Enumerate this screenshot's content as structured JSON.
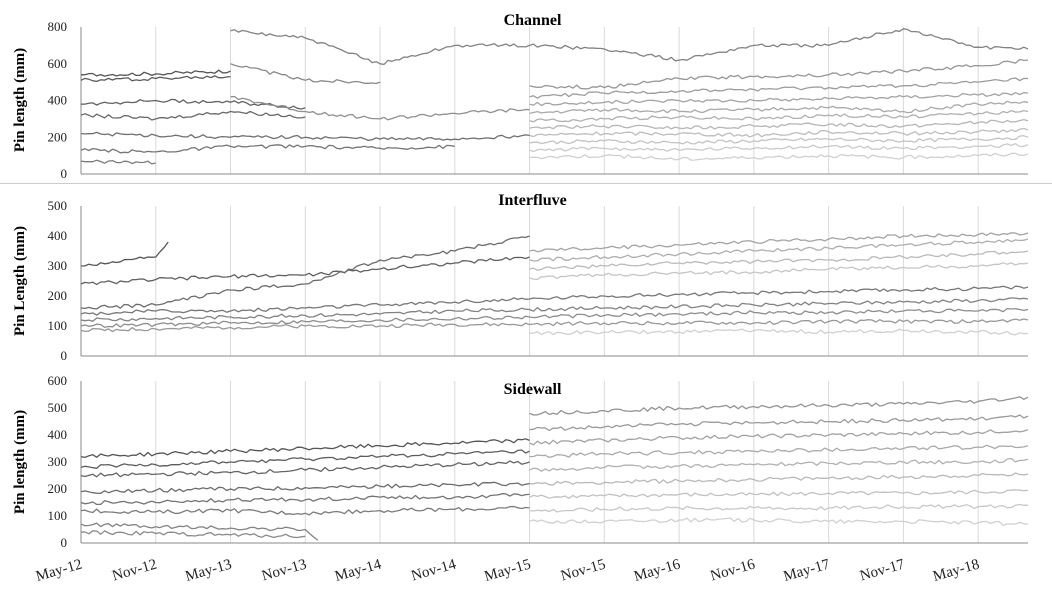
{
  "chart_data": [
    {
      "type": "line",
      "title": "Channel",
      "ylabel": "Pin length (mm)",
      "ylim": [
        0,
        800
      ],
      "yticks": [
        "0",
        "200",
        "400",
        "600",
        "800"
      ],
      "xlim": [
        "May-12",
        "Sep-18"
      ],
      "grid": "vertical",
      "series_color_range": [
        "#555555",
        "#d0d0d0"
      ],
      "series": [
        {
          "x": [
            "May-12",
            "Nov-12",
            "May-13"
          ],
          "values": [
            540,
            545,
            560
          ]
        },
        {
          "x": [
            "May-12",
            "Nov-12",
            "May-13"
          ],
          "values": [
            510,
            520,
            530
          ]
        },
        {
          "x": [
            "May-12",
            "Nov-12",
            "May-13",
            "Nov-13"
          ],
          "values": [
            380,
            400,
            390,
            360
          ]
        },
        {
          "x": [
            "May-12",
            "Nov-12",
            "May-13",
            "Nov-13"
          ],
          "values": [
            320,
            300,
            340,
            310
          ]
        },
        {
          "x": [
            "May-12",
            "Nov-12",
            "May-13",
            "Nov-13",
            "May-14",
            "Nov-14",
            "May-15"
          ],
          "values": [
            220,
            210,
            200,
            200,
            190,
            190,
            210
          ]
        },
        {
          "x": [
            "May-12",
            "Nov-12",
            "May-13",
            "Nov-13",
            "May-14",
            "Nov-14"
          ],
          "values": [
            130,
            120,
            150,
            150,
            140,
            150
          ]
        },
        {
          "x": [
            "May-12",
            "Nov-12"
          ],
          "values": [
            70,
            60
          ]
        },
        {
          "x": [
            "May-13",
            "Nov-13",
            "May-14",
            "Nov-14",
            "May-15",
            "Nov-15",
            "May-16",
            "Nov-16",
            "May-17",
            "Nov-17",
            "May-18",
            "Sep-18"
          ],
          "values": [
            780,
            740,
            600,
            700,
            700,
            680,
            620,
            700,
            700,
            790,
            690,
            680
          ]
        },
        {
          "x": [
            "May-13",
            "Nov-13",
            "May-14"
          ],
          "values": [
            600,
            510,
            500
          ]
        },
        {
          "x": [
            "May-13",
            "Nov-13",
            "May-14",
            "Nov-14",
            "May-15"
          ],
          "values": [
            420,
            340,
            300,
            330,
            350
          ]
        },
        {
          "x": [
            "May-15",
            "Nov-15",
            "May-16",
            "Nov-16",
            "May-17",
            "Nov-17",
            "May-18",
            "Sep-18"
          ],
          "values": [
            480,
            470,
            520,
            530,
            540,
            560,
            590,
            620
          ]
        },
        {
          "x": [
            "May-15",
            "Nov-15",
            "May-16",
            "Nov-16",
            "May-17",
            "Nov-17",
            "May-18",
            "Sep-18"
          ],
          "values": [
            420,
            440,
            450,
            460,
            470,
            480,
            500,
            520
          ]
        },
        {
          "x": [
            "May-15",
            "Nov-15",
            "May-16",
            "Nov-16",
            "May-17",
            "Nov-17",
            "May-18",
            "Sep-18"
          ],
          "values": [
            380,
            390,
            400,
            400,
            410,
            420,
            430,
            440
          ]
        },
        {
          "x": [
            "May-15",
            "Nov-15",
            "May-16",
            "Nov-16",
            "May-17",
            "Nov-17",
            "May-18",
            "Sep-18"
          ],
          "values": [
            330,
            350,
            340,
            350,
            360,
            340,
            380,
            390
          ]
        },
        {
          "x": [
            "May-15",
            "Nov-15",
            "May-16",
            "Nov-16",
            "May-17",
            "Nov-17",
            "May-18",
            "Sep-18"
          ],
          "values": [
            290,
            300,
            310,
            300,
            320,
            310,
            330,
            340
          ]
        },
        {
          "x": [
            "May-15",
            "Nov-15",
            "May-16",
            "Nov-16",
            "May-17",
            "Nov-17",
            "May-18",
            "Sep-18"
          ],
          "values": [
            250,
            260,
            250,
            260,
            270,
            260,
            280,
            290
          ]
        },
        {
          "x": [
            "May-15",
            "Nov-15",
            "May-16",
            "Nov-16",
            "May-17",
            "Nov-17",
            "May-18",
            "Sep-18"
          ],
          "values": [
            210,
            220,
            220,
            210,
            230,
            220,
            230,
            240
          ]
        },
        {
          "x": [
            "May-15",
            "Nov-15",
            "May-16",
            "Nov-16",
            "May-17",
            "Nov-17",
            "May-18",
            "Sep-18"
          ],
          "values": [
            170,
            180,
            170,
            180,
            190,
            180,
            190,
            200
          ]
        },
        {
          "x": [
            "May-15",
            "Nov-15",
            "May-16",
            "Nov-16",
            "May-17",
            "Nov-17",
            "May-18",
            "Sep-18"
          ],
          "values": [
            130,
            140,
            130,
            140,
            150,
            140,
            150,
            160
          ]
        },
        {
          "x": [
            "May-15",
            "Nov-15",
            "May-16",
            "Nov-16",
            "May-17",
            "Nov-17",
            "May-18",
            "Sep-18"
          ],
          "values": [
            90,
            100,
            80,
            90,
            100,
            90,
            100,
            110
          ]
        }
      ]
    },
    {
      "type": "line",
      "title": "Interfluve",
      "ylabel": "Pin Length (mm)",
      "ylim": [
        0,
        500
      ],
      "yticks": [
        "0",
        "100",
        "200",
        "300",
        "400",
        "500"
      ],
      "xlim": [
        "May-12",
        "Sep-18"
      ],
      "grid": "vertical",
      "series_color_range": [
        "#555555",
        "#d0d0d0"
      ],
      "series": [
        {
          "x": [
            "May-12",
            "Nov-12",
            "Dec-12"
          ],
          "values": [
            300,
            330,
            380
          ]
        },
        {
          "x": [
            "May-12",
            "Nov-12",
            "May-13",
            "Nov-13",
            "May-14",
            "Nov-14",
            "May-15"
          ],
          "values": [
            240,
            255,
            265,
            270,
            290,
            310,
            330
          ]
        },
        {
          "x": [
            "May-12",
            "Nov-12",
            "May-13",
            "Nov-13",
            "May-14",
            "Nov-14",
            "May-15"
          ],
          "values": [
            160,
            170,
            220,
            240,
            320,
            350,
            400
          ]
        },
        {
          "x": [
            "May-12",
            "Nov-12",
            "May-13",
            "Nov-13",
            "May-14",
            "Nov-14",
            "May-15",
            "Nov-15",
            "May-16",
            "Nov-16",
            "May-17",
            "Nov-17",
            "May-18",
            "Sep-18"
          ],
          "values": [
            140,
            150,
            150,
            160,
            170,
            180,
            190,
            200,
            205,
            210,
            215,
            220,
            225,
            230
          ]
        },
        {
          "x": [
            "May-12",
            "Nov-12",
            "May-13",
            "Nov-13",
            "May-14",
            "Nov-14",
            "May-15",
            "Nov-15",
            "May-16",
            "Nov-16",
            "May-17",
            "Nov-17",
            "May-18",
            "Sep-18"
          ],
          "values": [
            120,
            125,
            130,
            135,
            140,
            150,
            155,
            160,
            165,
            170,
            175,
            180,
            185,
            190
          ]
        },
        {
          "x": [
            "May-12",
            "Nov-12",
            "May-13",
            "Nov-13",
            "May-14",
            "Nov-14",
            "May-15",
            "Nov-15",
            "May-16",
            "Nov-16",
            "May-17",
            "Nov-17",
            "May-18",
            "Sep-18"
          ],
          "values": [
            100,
            105,
            110,
            115,
            120,
            125,
            130,
            135,
            140,
            145,
            145,
            150,
            150,
            155
          ]
        },
        {
          "x": [
            "May-12",
            "Nov-12",
            "May-13",
            "Nov-13",
            "May-14",
            "Nov-14",
            "May-15",
            "Nov-15",
            "May-16",
            "Nov-16",
            "May-17",
            "Nov-17",
            "May-18",
            "Sep-18"
          ],
          "values": [
            85,
            90,
            95,
            100,
            100,
            105,
            105,
            110,
            110,
            110,
            115,
            115,
            115,
            120
          ]
        },
        {
          "x": [
            "May-15",
            "Nov-15",
            "May-16",
            "Nov-16",
            "May-17",
            "Nov-17",
            "May-18",
            "Sep-18"
          ],
          "values": [
            350,
            360,
            370,
            380,
            390,
            400,
            405,
            410
          ]
        },
        {
          "x": [
            "May-15",
            "Nov-15",
            "May-16",
            "Nov-16",
            "May-17",
            "Nov-17",
            "May-18",
            "Sep-18"
          ],
          "values": [
            320,
            330,
            340,
            350,
            360,
            370,
            380,
            390
          ]
        },
        {
          "x": [
            "May-15",
            "Nov-15",
            "May-16",
            "Nov-16",
            "May-17",
            "Nov-17",
            "May-18",
            "Sep-18"
          ],
          "values": [
            290,
            300,
            310,
            315,
            320,
            330,
            340,
            350
          ]
        },
        {
          "x": [
            "May-15",
            "Nov-15",
            "May-16",
            "Nov-16",
            "May-17",
            "Nov-17",
            "May-18",
            "Sep-18"
          ],
          "values": [
            260,
            270,
            275,
            280,
            290,
            295,
            300,
            310
          ]
        },
        {
          "x": [
            "May-15",
            "Nov-15",
            "May-16",
            "Nov-16",
            "May-17",
            "Nov-17",
            "May-18",
            "Sep-18"
          ],
          "values": [
            75,
            80,
            80,
            85,
            80,
            85,
            80,
            75
          ]
        }
      ]
    },
    {
      "type": "line",
      "title": "Sidewall",
      "ylabel": "Pin length (mm)",
      "ylim": [
        0,
        600
      ],
      "yticks": [
        "0",
        "100",
        "200",
        "300",
        "400",
        "500",
        "600"
      ],
      "xlim": [
        "May-12",
        "Sep-18"
      ],
      "xticks": [
        "May-12",
        "Nov-12",
        "May-13",
        "Nov-13",
        "May-14",
        "Nov-14",
        "May-15",
        "Nov-15",
        "May-16",
        "Nov-16",
        "May-17",
        "Nov-17",
        "May-18"
      ],
      "grid": "vertical",
      "series_color_range": [
        "#555555",
        "#d0d0d0"
      ],
      "series": [
        {
          "x": [
            "May-12",
            "Nov-12",
            "May-13",
            "Nov-13",
            "May-14",
            "Nov-14",
            "May-15"
          ],
          "values": [
            320,
            330,
            340,
            350,
            360,
            370,
            380
          ]
        },
        {
          "x": [
            "May-12",
            "Nov-12",
            "May-13",
            "Nov-13",
            "May-14",
            "Nov-14",
            "May-15"
          ],
          "values": [
            280,
            290,
            300,
            310,
            320,
            330,
            340
          ]
        },
        {
          "x": [
            "May-12",
            "Nov-12",
            "May-13",
            "Nov-13",
            "May-14",
            "Nov-14",
            "May-15"
          ],
          "values": [
            250,
            255,
            260,
            270,
            280,
            290,
            300
          ]
        },
        {
          "x": [
            "May-12",
            "Nov-12",
            "May-13",
            "Nov-13",
            "May-14",
            "Nov-14",
            "May-15"
          ],
          "values": [
            190,
            195,
            200,
            205,
            210,
            215,
            220
          ]
        },
        {
          "x": [
            "May-12",
            "Nov-12",
            "May-13",
            "Nov-13",
            "May-14",
            "Nov-14",
            "May-15"
          ],
          "values": [
            150,
            150,
            160,
            160,
            170,
            170,
            180
          ]
        },
        {
          "x": [
            "May-12",
            "Nov-12",
            "May-13",
            "Nov-13",
            "May-14",
            "Nov-14",
            "May-15"
          ],
          "values": [
            120,
            115,
            120,
            110,
            120,
            125,
            130
          ]
        },
        {
          "x": [
            "May-12",
            "Nov-12",
            "May-13",
            "Nov-13",
            "Dec-13"
          ],
          "values": [
            70,
            60,
            55,
            50,
            10
          ]
        },
        {
          "x": [
            "May-12",
            "Nov-12",
            "May-13",
            "Nov-13"
          ],
          "values": [
            40,
            35,
            30,
            25
          ]
        },
        {
          "x": [
            "May-15",
            "Nov-15",
            "May-16",
            "Nov-16",
            "May-17",
            "Nov-17",
            "May-18",
            "Sep-18"
          ],
          "values": [
            480,
            490,
            500,
            505,
            510,
            515,
            525,
            540
          ]
        },
        {
          "x": [
            "May-15",
            "Nov-15",
            "May-16",
            "Nov-16",
            "May-17",
            "Nov-17",
            "May-18",
            "Sep-18"
          ],
          "values": [
            420,
            430,
            440,
            445,
            450,
            455,
            460,
            470
          ]
        },
        {
          "x": [
            "May-15",
            "Nov-15",
            "May-16",
            "Nov-16",
            "May-17",
            "Nov-17",
            "May-18",
            "Sep-18"
          ],
          "values": [
            370,
            380,
            390,
            395,
            400,
            405,
            410,
            420
          ]
        },
        {
          "x": [
            "May-15",
            "Nov-15",
            "May-16",
            "Nov-16",
            "May-17",
            "Nov-17",
            "May-18",
            "Sep-18"
          ],
          "values": [
            320,
            330,
            335,
            340,
            345,
            350,
            355,
            360
          ]
        },
        {
          "x": [
            "May-15",
            "Nov-15",
            "May-16",
            "Nov-16",
            "May-17",
            "Nov-17",
            "May-18",
            "Sep-18"
          ],
          "values": [
            270,
            280,
            285,
            290,
            295,
            300,
            300,
            310
          ]
        },
        {
          "x": [
            "May-15",
            "Nov-15",
            "May-16",
            "Nov-16",
            "May-17",
            "Nov-17",
            "May-18",
            "Sep-18"
          ],
          "values": [
            220,
            225,
            230,
            235,
            240,
            245,
            250,
            255
          ]
        },
        {
          "x": [
            "May-15",
            "Nov-15",
            "May-16",
            "Nov-16",
            "May-17",
            "Nov-17",
            "May-18",
            "Sep-18"
          ],
          "values": [
            170,
            175,
            180,
            180,
            185,
            185,
            190,
            195
          ]
        },
        {
          "x": [
            "May-15",
            "Nov-15",
            "May-16",
            "Nov-16",
            "May-17",
            "Nov-17",
            "May-18",
            "Sep-18"
          ],
          "values": [
            120,
            125,
            130,
            130,
            130,
            135,
            135,
            140
          ]
        },
        {
          "x": [
            "May-15",
            "Nov-15",
            "May-16",
            "Nov-16",
            "May-17",
            "Nov-17",
            "May-18",
            "Sep-18"
          ],
          "values": [
            80,
            80,
            85,
            85,
            80,
            80,
            75,
            70
          ]
        }
      ]
    }
  ]
}
